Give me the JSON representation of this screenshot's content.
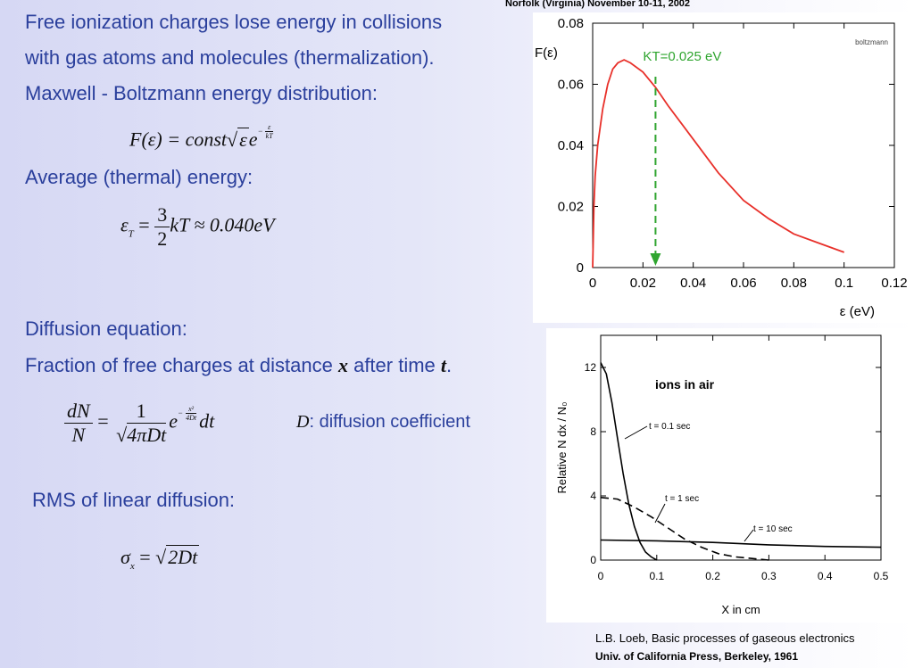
{
  "header": {
    "conference": "Norfolk (Virginia) November 10-11, 2002"
  },
  "text": {
    "line1": "Free ionization charges lose energy in collisions",
    "line2": "with gas atoms and molecules (thermalization).",
    "line3": "Maxwell - Boltzmann energy distribution:",
    "avg_energy": "Average (thermal) energy:",
    "diffusion_eq": "Diffusion equation:",
    "fraction_prefix": "Fraction of free charges at distance ",
    "fraction_x": "x",
    "fraction_mid": " after time ",
    "fraction_t": "t",
    "fraction_end": ".",
    "d_label": "D",
    "d_text": ": diffusion coefficient",
    "rms": "RMS of linear diffusion:"
  },
  "equations": {
    "maxwell": {
      "lhs": "F(ε) = const",
      "rad": "ε",
      "e": "e",
      "exp_num": "ε",
      "exp_den": "kT",
      "exp_sign": "−"
    },
    "thermal": {
      "lhs": "ε",
      "sub": "T",
      "eq": " = ",
      "num": "3",
      "den": "2",
      "rhs": "kT ≈ 0.040eV"
    },
    "diffusion": {
      "num": "dN",
      "den": "N",
      "eq": " = ",
      "num2": "1",
      "den2_pre": "√",
      "den2": "4πDt",
      "e": "e",
      "exp_num": "x²",
      "exp_den": "4Dt",
      "exp_sign": "−",
      "rhs": "dt"
    },
    "rms": {
      "lhs": "σ",
      "sub": "x",
      "eq": " = ",
      "rad": "2Dt"
    }
  },
  "chart_data": [
    {
      "type": "line",
      "title": "boltzmann",
      "ylabel": "F(ε)",
      "xlabel": "ε (eV)",
      "xlim": [
        0,
        0.12
      ],
      "ylim": [
        0,
        0.08
      ],
      "xticks": [
        "0",
        "0.02",
        "0.04",
        "0.06",
        "0.08",
        "0.1",
        "0.12"
      ],
      "yticks": [
        "0",
        "0.02",
        "0.04",
        "0.06",
        "0.08"
      ],
      "series": [
        {
          "color": "#e8302a",
          "x": [
            0.0,
            0.0005,
            0.001,
            0.002,
            0.004,
            0.006,
            0.008,
            0.01,
            0.0125,
            0.015,
            0.02,
            0.025,
            0.03,
            0.04,
            0.05,
            0.06,
            0.07,
            0.08,
            0.09,
            0.1
          ],
          "y": [
            0.0,
            0.02,
            0.03,
            0.04,
            0.052,
            0.06,
            0.065,
            0.067,
            0.068,
            0.067,
            0.064,
            0.059,
            0.053,
            0.042,
            0.031,
            0.022,
            0.016,
            0.011,
            0.008,
            0.005
          ]
        }
      ],
      "annotation": {
        "text": "KT=0.025 eV",
        "x": 0.025,
        "color": "#2fa52f"
      }
    },
    {
      "type": "line",
      "title": "ions in air",
      "ylabel": "Relative   N dx / N₀",
      "xlabel": "X  in  cm",
      "xlim": [
        0,
        0.5
      ],
      "ylim": [
        0,
        14
      ],
      "xticks": [
        "0",
        "0.1",
        "0.2",
        "0.3",
        "0.4",
        "0.5"
      ],
      "yticks": [
        "0",
        "4",
        "8",
        "12"
      ],
      "series": [
        {
          "name": "t = 0.1 sec",
          "style": "solid",
          "x": [
            0.0,
            0.01,
            0.02,
            0.03,
            0.04,
            0.05,
            0.06,
            0.07,
            0.08,
            0.09,
            0.1
          ],
          "y": [
            12.3,
            11.6,
            9.8,
            7.6,
            5.4,
            3.5,
            2.1,
            1.1,
            0.5,
            0.2,
            0.0
          ]
        },
        {
          "name": "t = 1 sec",
          "style": "dashed",
          "x": [
            0.0,
            0.03,
            0.06,
            0.09,
            0.12,
            0.15,
            0.18,
            0.21,
            0.24,
            0.27,
            0.3
          ],
          "y": [
            3.9,
            3.8,
            3.3,
            2.7,
            2.0,
            1.3,
            0.8,
            0.4,
            0.2,
            0.1,
            0.0
          ]
        },
        {
          "name": "t = 10 sec",
          "style": "solid",
          "x": [
            0.0,
            0.1,
            0.2,
            0.3,
            0.4,
            0.5
          ],
          "y": [
            1.25,
            1.2,
            1.1,
            0.95,
            0.85,
            0.8
          ]
        }
      ],
      "labels": [
        "t = 0.1 sec",
        "t = 1 sec",
        "t = 10 sec"
      ]
    }
  ],
  "reference": {
    "line1": "L.B. Loeb, Basic processes of gaseous electronics",
    "line2": "Univ. of California Press, Berkeley, 1961"
  }
}
